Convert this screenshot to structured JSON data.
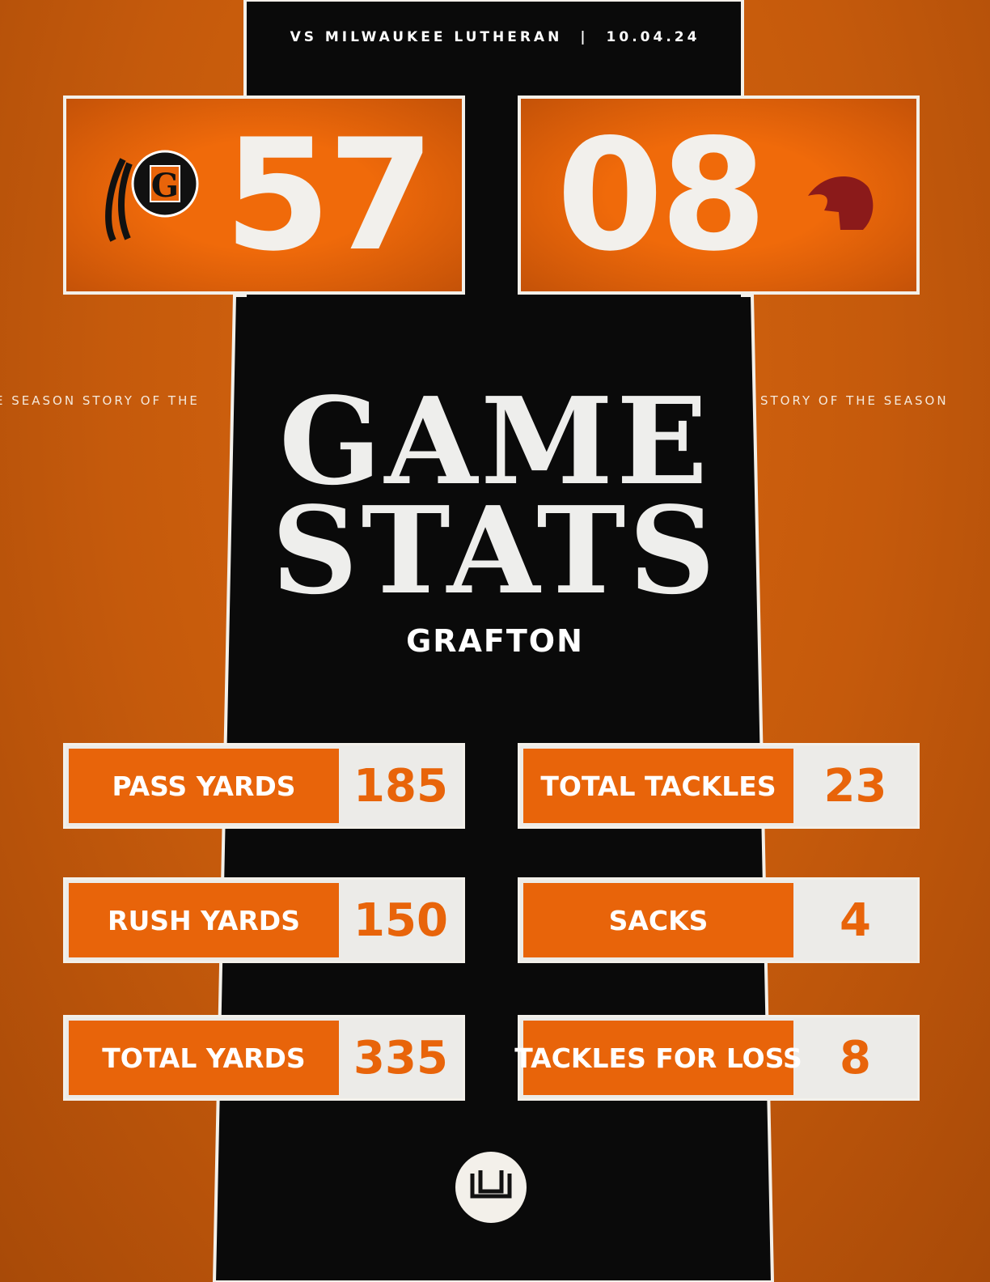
{
  "header": {
    "matchup": "VS MILWAUKEE LUTHERAN",
    "date": "10.04.24"
  },
  "scores": {
    "home": "57",
    "away": "08"
  },
  "side_text": {
    "left": "E SEASON   STORY OF THE",
    "right": "STORY OF THE SEASON"
  },
  "title": {
    "line1": "GAME",
    "line2": "STATS",
    "team": "GRAFTON"
  },
  "stats": {
    "left": [
      {
        "label": "PASS YARDS",
        "value": 185
      },
      {
        "label": "RUSH YARDS",
        "value": 150
      },
      {
        "label": "TOTAL YARDS",
        "value": 335
      }
    ],
    "right": [
      {
        "label": "TOTAL TACKLES",
        "value": 23
      },
      {
        "label": "SACKS",
        "value": 4
      },
      {
        "label": "TACKLES FOR LOSS",
        "value": 8
      }
    ]
  }
}
